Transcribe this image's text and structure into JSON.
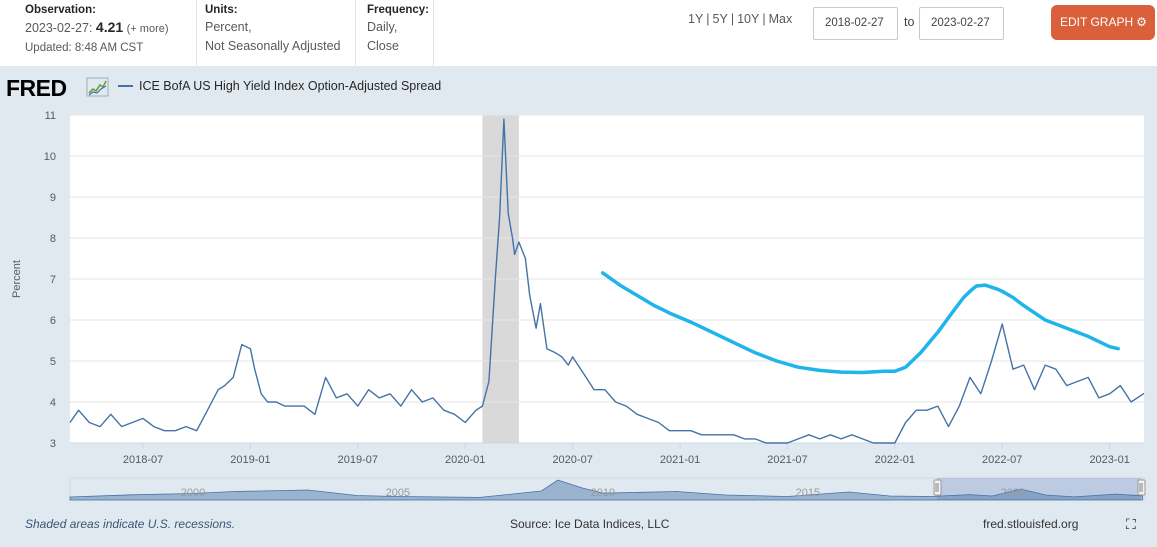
{
  "header": {
    "observation_label": "Observation:",
    "observation_date": "2023-02-27:",
    "observation_value": "4.21",
    "observation_more": "(+ more)",
    "updated": "Updated: 8:48 AM CST",
    "units_label": "Units:",
    "units_line1": "Percent,",
    "units_line2": "Not Seasonally Adjusted",
    "frequency_label": "Frequency:",
    "frequency_line1": "Daily,",
    "frequency_line2": "Close",
    "ranges": [
      "1Y",
      "5Y",
      "10Y",
      "Max"
    ],
    "date_from": "2018-02-27",
    "to_label": "to",
    "date_to": "2023-02-27",
    "edit_button": "EDIT GRAPH"
  },
  "logo": {
    "text": "FRED"
  },
  "footer": {
    "note": "Shaded areas indicate U.S. recessions.",
    "source": "Source: Ice Data Indices, LLC",
    "url": "fred.stlouisfed.org"
  },
  "colors": {
    "series": "#4572a7",
    "overlay_curve": "#1fb4ea",
    "recession": "#d9d9d9",
    "button": "#d9603b",
    "background": "#e1e9f0"
  },
  "chart_data": {
    "type": "line",
    "title": "ICE BofA US High Yield Index Option-Adjusted Spread",
    "xlabel": "",
    "ylabel": "Percent",
    "ylim": [
      3,
      11
    ],
    "xlim": [
      2018.16,
      2023.16
    ],
    "yticks": [
      3,
      4,
      5,
      6,
      7,
      8,
      9,
      10,
      11
    ],
    "xticks": [
      {
        "label": "2018-07",
        "x": 2018.5
      },
      {
        "label": "2019-01",
        "x": 2019.0
      },
      {
        "label": "2019-07",
        "x": 2019.5
      },
      {
        "label": "2020-01",
        "x": 2020.0
      },
      {
        "label": "2020-07",
        "x": 2020.5
      },
      {
        "label": "2021-01",
        "x": 2021.0
      },
      {
        "label": "2021-07",
        "x": 2021.5
      },
      {
        "label": "2022-01",
        "x": 2022.0
      },
      {
        "label": "2022-07",
        "x": 2022.5
      },
      {
        "label": "2023-01",
        "x": 2023.0
      }
    ],
    "grid": true,
    "recession": [
      2020.08,
      2020.25
    ],
    "series": [
      {
        "name": "ICE BofA US High Yield Index Option-Adjusted Spread",
        "x": [
          2018.16,
          2018.2,
          2018.25,
          2018.3,
          2018.35,
          2018.4,
          2018.45,
          2018.5,
          2018.55,
          2018.6,
          2018.65,
          2018.7,
          2018.75,
          2018.8,
          2018.85,
          2018.88,
          2018.92,
          2018.96,
          2019.0,
          2019.02,
          2019.05,
          2019.08,
          2019.12,
          2019.16,
          2019.2,
          2019.25,
          2019.3,
          2019.35,
          2019.4,
          2019.45,
          2019.5,
          2019.55,
          2019.6,
          2019.65,
          2019.7,
          2019.75,
          2019.8,
          2019.85,
          2019.9,
          2019.95,
          2020.0,
          2020.05,
          2020.08,
          2020.11,
          2020.14,
          2020.16,
          2020.18,
          2020.2,
          2020.22,
          2020.23,
          2020.25,
          2020.28,
          2020.3,
          2020.33,
          2020.35,
          2020.38,
          2020.42,
          2020.45,
          2020.48,
          2020.5,
          2020.55,
          2020.6,
          2020.65,
          2020.7,
          2020.75,
          2020.8,
          2020.85,
          2020.9,
          2020.95,
          2021.0,
          2021.05,
          2021.1,
          2021.15,
          2021.2,
          2021.25,
          2021.3,
          2021.35,
          2021.4,
          2021.45,
          2021.5,
          2021.55,
          2021.6,
          2021.65,
          2021.7,
          2021.75,
          2021.8,
          2021.85,
          2021.9,
          2021.95,
          2022.0,
          2022.05,
          2022.1,
          2022.15,
          2022.2,
          2022.25,
          2022.3,
          2022.35,
          2022.4,
          2022.45,
          2022.5,
          2022.55,
          2022.6,
          2022.65,
          2022.7,
          2022.75,
          2022.8,
          2022.85,
          2022.9,
          2022.95,
          2023.0,
          2023.05,
          2023.1,
          2023.16
        ],
        "values": [
          3.5,
          3.8,
          3.5,
          3.4,
          3.7,
          3.4,
          3.5,
          3.6,
          3.4,
          3.3,
          3.3,
          3.4,
          3.3,
          3.8,
          4.3,
          4.4,
          4.6,
          5.4,
          5.3,
          4.8,
          4.2,
          4.0,
          4.0,
          3.9,
          3.9,
          3.9,
          3.7,
          4.6,
          4.1,
          4.2,
          3.9,
          4.3,
          4.1,
          4.2,
          3.9,
          4.3,
          4.0,
          4.1,
          3.8,
          3.7,
          3.5,
          3.8,
          3.9,
          4.5,
          7.0,
          8.5,
          10.9,
          8.6,
          8.0,
          7.6,
          7.9,
          7.5,
          6.6,
          5.8,
          6.4,
          5.3,
          5.2,
          5.1,
          4.9,
          5.1,
          4.7,
          4.3,
          4.3,
          4.0,
          3.9,
          3.7,
          3.6,
          3.5,
          3.3,
          3.3,
          3.3,
          3.2,
          3.2,
          3.2,
          3.2,
          3.1,
          3.1,
          3.0,
          3.0,
          3.0,
          3.1,
          3.2,
          3.1,
          3.2,
          3.1,
          3.2,
          3.1,
          3.0,
          3.0,
          3.0,
          3.5,
          3.8,
          3.8,
          3.9,
          3.4,
          3.9,
          4.6,
          4.2,
          5.0,
          5.9,
          4.8,
          4.9,
          4.3,
          4.9,
          4.8,
          4.4,
          4.5,
          4.6,
          4.1,
          4.2,
          4.4,
          4.0,
          4.21
        ]
      },
      {
        "name": "overlay-curve",
        "x": [
          2020.64,
          2020.72,
          2020.8,
          2020.88,
          2020.96,
          2021.05,
          2021.15,
          2021.25,
          2021.35,
          2021.45,
          2021.55,
          2021.65,
          2021.75,
          2021.85,
          2021.95,
          2022.0,
          2022.05,
          2022.12,
          2022.2,
          2022.27,
          2022.32,
          2022.36,
          2022.38,
          2022.42,
          2022.45,
          2022.48,
          2022.5,
          2022.55,
          2022.6,
          2022.7,
          2022.8,
          2022.9,
          2023.0,
          2023.04
        ],
        "values": [
          7.15,
          6.85,
          6.6,
          6.35,
          6.15,
          5.95,
          5.7,
          5.45,
          5.2,
          5.0,
          4.85,
          4.77,
          4.73,
          4.72,
          4.75,
          4.75,
          4.85,
          5.2,
          5.7,
          6.2,
          6.55,
          6.75,
          6.83,
          6.85,
          6.8,
          6.75,
          6.7,
          6.55,
          6.35,
          6.0,
          5.8,
          5.6,
          5.35,
          5.3
        ]
      }
    ]
  },
  "navigator": {
    "year_labels": [
      "2000",
      "2005",
      "2010",
      "2015",
      "2020"
    ]
  }
}
